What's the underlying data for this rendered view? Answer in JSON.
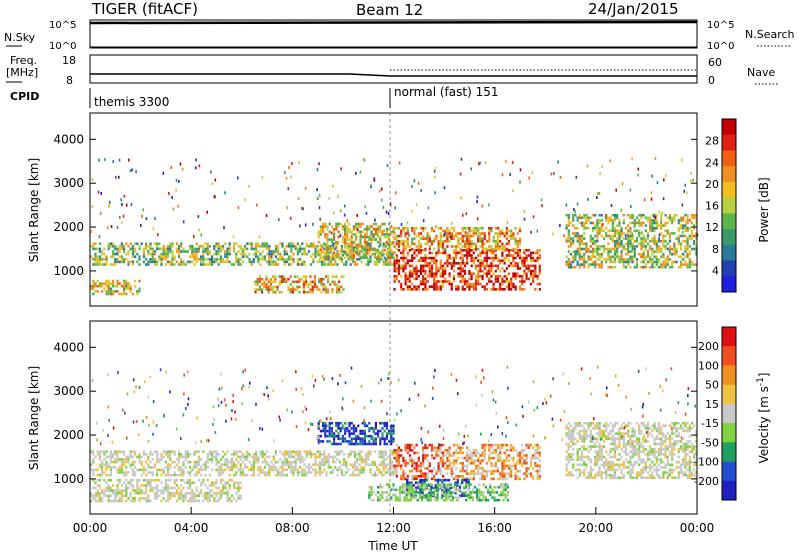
{
  "header": {
    "title": "TIGER (fitACF)",
    "beam": "Beam 12",
    "date": "24/Jan/2015"
  },
  "nsky_panel": {
    "label": "N.Sky",
    "left_ticks": [
      "10^5",
      "10^0"
    ],
    "right_label": "N.Search",
    "right_ticks": [
      "10^5",
      "10^0"
    ]
  },
  "freq_panel": {
    "label_line1": "Freq.",
    "label_line2": "[MHz]",
    "left_ticks": [
      "18",
      "8"
    ],
    "right_label": "Nave",
    "right_ticks": [
      "60",
      "0"
    ]
  },
  "cpid": {
    "label": "CPID",
    "segments": [
      "themis 3300",
      "normal (fast) 151"
    ]
  },
  "chart_data": [
    {
      "type": "heatmap",
      "name": "power",
      "ylabel": "Slant Range [km]",
      "y_ticks": [
        "1000",
        "2000",
        "3000",
        "4000"
      ],
      "ylim": [
        200,
        4600
      ],
      "xlim_hours": [
        0,
        24
      ],
      "colorbar": {
        "label": "Power [dB]",
        "ticks": [
          "4",
          "8",
          "12",
          "16",
          "20",
          "24",
          "28"
        ],
        "range": [
          0,
          32
        ],
        "colors": [
          "#1f1fe0",
          "#2040b0",
          "#2a7a9a",
          "#3a9a6a",
          "#5ab54a",
          "#b8d040",
          "#f0c020",
          "#f09020",
          "#f06010",
          "#e02010",
          "#c00000"
        ]
      },
      "echo_regions": [
        {
          "t_start": 0.0,
          "t_end": 12.0,
          "r_low": 1150,
          "r_high": 1650,
          "level": 0.45
        },
        {
          "t_start": 0.0,
          "t_end": 2.0,
          "r_low": 450,
          "r_high": 800,
          "level": 0.55
        },
        {
          "t_start": 6.5,
          "t_end": 10.0,
          "r_low": 500,
          "r_high": 900,
          "level": 0.6
        },
        {
          "t_start": 9.0,
          "t_end": 12.0,
          "r_low": 1300,
          "r_high": 2100,
          "level": 0.55
        },
        {
          "t_start": 12.0,
          "t_end": 17.8,
          "r_low": 600,
          "r_high": 1500,
          "level": 0.85
        },
        {
          "t_start": 12.0,
          "t_end": 17.0,
          "r_low": 1500,
          "r_high": 2000,
          "level": 0.65
        },
        {
          "t_start": 18.8,
          "t_end": 24.0,
          "r_low": 1100,
          "r_high": 2300,
          "level": 0.5
        }
      ]
    },
    {
      "type": "heatmap",
      "name": "velocity",
      "ylabel": "Slant Range [km]",
      "y_ticks": [
        "1000",
        "2000",
        "3000",
        "4000"
      ],
      "ylim": [
        200,
        4600
      ],
      "xlabel": "Time UT",
      "x_ticks": [
        "00:00",
        "04:00",
        "08:00",
        "12:00",
        "16:00",
        "20:00",
        "00:00"
      ],
      "xlim_hours": [
        0,
        24
      ],
      "colorbar": {
        "label": "Velocity [m s^-1]",
        "ticks": [
          "200",
          "100",
          "50",
          "15",
          "-15",
          "-50",
          "-100",
          "-200"
        ],
        "colors": [
          "#2020c0",
          "#2050d0",
          "#20a060",
          "#80d040",
          "#c8c8c8",
          "#f0c040",
          "#f09020",
          "#f05020",
          "#e01010"
        ]
      },
      "echo_regions": [
        {
          "t_start": 0.0,
          "t_end": 12.0,
          "r_low": 1100,
          "r_high": 1650,
          "kind": "gray"
        },
        {
          "t_start": 0.0,
          "t_end": 6.0,
          "r_low": 500,
          "r_high": 1000,
          "kind": "gray"
        },
        {
          "t_start": 9.0,
          "t_end": 12.0,
          "r_low": 1800,
          "r_high": 2300,
          "kind": "blue"
        },
        {
          "t_start": 12.0,
          "t_end": 14.0,
          "r_low": 1000,
          "r_high": 1800,
          "kind": "red"
        },
        {
          "t_start": 14.0,
          "t_end": 17.8,
          "r_low": 1000,
          "r_high": 1800,
          "kind": "orange"
        },
        {
          "t_start": 12.5,
          "t_end": 15.0,
          "r_low": 600,
          "r_high": 1000,
          "kind": "blue"
        },
        {
          "t_start": 11.0,
          "t_end": 16.5,
          "r_low": 500,
          "r_high": 900,
          "kind": "green"
        },
        {
          "t_start": 18.8,
          "t_end": 24.0,
          "r_low": 1000,
          "r_high": 2300,
          "kind": "gray"
        }
      ]
    }
  ]
}
